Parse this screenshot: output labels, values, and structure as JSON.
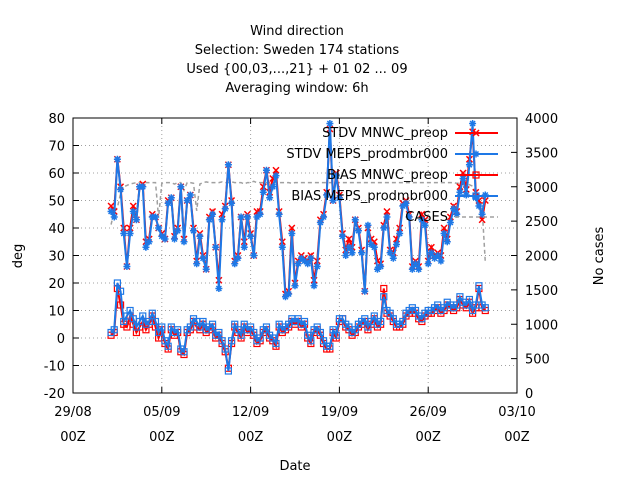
{
  "chart_data": {
    "type": "line",
    "title_lines": [
      "Wind direction",
      "Selection: Sweden    174 stations",
      "Used {00,03,...,21} + 01 02 ... 09",
      "Averaging window:  6h"
    ],
    "xlabel": "Date",
    "ylabel": "deg",
    "y2label": "No cases",
    "ylim": [
      -20,
      80
    ],
    "y2lim": [
      0,
      4000
    ],
    "xlim": [
      "2011-08-29T00",
      "2011-10-03T00"
    ],
    "yticks": [
      "-20",
      "-10",
      "0",
      "10",
      "20",
      "30",
      "40",
      "50",
      "60",
      "70",
      "80"
    ],
    "y2ticks": [
      "0",
      "500",
      "1000",
      "1500",
      "2000",
      "2500",
      "3000",
      "3500",
      "4000"
    ],
    "xticks": [
      {
        "date": "29/08",
        "time": "00Z"
      },
      {
        "date": "05/09",
        "time": "00Z"
      },
      {
        "date": "12/09",
        "time": "00Z"
      },
      {
        "date": "19/09",
        "time": "00Z"
      },
      {
        "date": "26/09",
        "time": "00Z"
      },
      {
        "date": "03/10",
        "time": "00Z"
      }
    ],
    "grid": true,
    "legend_position": "top-right",
    "x_day_range": [
      0,
      35
    ],
    "time_days": [
      3.0,
      3.25,
      3.5,
      3.75,
      4.0,
      4.25,
      4.5,
      4.75,
      5.0,
      5.25,
      5.5,
      5.75,
      6.0,
      6.25,
      6.5,
      6.75,
      7.0,
      7.25,
      7.5,
      7.75,
      8.0,
      8.25,
      8.5,
      8.75,
      9.0,
      9.25,
      9.5,
      9.75,
      10.0,
      10.25,
      10.5,
      10.75,
      11.0,
      11.25,
      11.5,
      11.75,
      12.0,
      12.25,
      12.5,
      12.75,
      13.0,
      13.25,
      13.5,
      13.75,
      14.0,
      14.25,
      14.5,
      14.75,
      15.0,
      15.25,
      15.5,
      15.75,
      16.0,
      16.25,
      16.5,
      16.75,
      17.0,
      17.25,
      17.5,
      17.75,
      18.0,
      18.25,
      18.5,
      18.75,
      19.0,
      19.25,
      19.5,
      19.75,
      20.0,
      20.25,
      20.5,
      20.75,
      21.0,
      21.25,
      21.5,
      21.75,
      22.0,
      22.25,
      22.5,
      22.75,
      23.0,
      23.25,
      23.5,
      23.75,
      24.0,
      24.25,
      24.5,
      24.75,
      25.0,
      25.25,
      25.5,
      25.75,
      26.0,
      26.25,
      26.5,
      26.75,
      27.0,
      27.25,
      27.5,
      27.75,
      28.0,
      28.25,
      28.5,
      28.75,
      29.0,
      29.25,
      29.5,
      29.75,
      30.0,
      30.25,
      30.5,
      30.75,
      31.0,
      31.25,
      31.5,
      31.75,
      32.0,
      32.25,
      32.5,
      32.75,
      33.0
    ],
    "series": [
      {
        "name": "STDV MNWC_preop",
        "color": "#ff0000",
        "marker": "x",
        "axis": "y",
        "values": [
          48,
          46,
          65,
          55,
          40,
          26,
          40,
          48,
          43,
          55,
          56,
          35,
          36,
          45,
          44,
          40,
          38,
          36,
          50,
          51,
          37,
          40,
          55,
          36,
          50,
          52,
          40,
          28,
          38,
          30,
          25,
          44,
          46,
          33,
          21,
          45,
          48,
          63,
          50,
          28,
          30,
          44,
          35,
          45,
          38,
          30,
          46,
          46,
          55,
          61,
          53,
          58,
          61,
          46,
          35,
          16,
          17,
          40,
          20,
          28,
          30,
          29,
          28,
          30,
          21,
          28,
          43,
          45,
          53,
          76,
          50,
          60,
          52,
          38,
          32,
          36,
          33,
          43,
          40,
          32,
          17,
          40,
          36,
          35,
          28,
          27,
          41,
          46,
          32,
          31,
          36,
          40,
          49,
          50,
          45,
          26,
          28,
          26,
          45,
          43,
          28,
          33,
          30,
          31,
          30,
          40,
          36,
          44,
          48,
          46,
          55,
          60,
          54,
          65,
          75,
          53,
          50,
          43,
          50
        ]
      },
      {
        "name": "STDV MEPS_prodmbr000",
        "color": "#1e78e6",
        "marker": "*",
        "axis": "y",
        "values": [
          46,
          44,
          65,
          54,
          38,
          26,
          38,
          46,
          43,
          55,
          55,
          33,
          35,
          44,
          44,
          40,
          37,
          36,
          49,
          51,
          36,
          39,
          55,
          35,
          50,
          52,
          39,
          27,
          37,
          29,
          25,
          43,
          45,
          33,
          18,
          43,
          47,
          63,
          49,
          27,
          29,
          44,
          33,
          44,
          37,
          30,
          44,
          45,
          53,
          61,
          51,
          55,
          59,
          45,
          33,
          15,
          16,
          38,
          19,
          27,
          29,
          28,
          27,
          29,
          19,
          26,
          42,
          44,
          52,
          78,
          50,
          59,
          51,
          37,
          30,
          33,
          31,
          43,
          39,
          31,
          17,
          41,
          34,
          33,
          25,
          26,
          40,
          44,
          31,
          29,
          34,
          38,
          48,
          49,
          44,
          25,
          27,
          25,
          43,
          41,
          27,
          31,
          29,
          30,
          28,
          38,
          35,
          42,
          47,
          45,
          53,
          58,
          52,
          63,
          78,
          51,
          48,
          45,
          52
        ]
      },
      {
        "name": "BIAS MNWC_preop",
        "color": "#ff0000",
        "marker": "square",
        "axis": "y",
        "values": [
          1,
          2,
          18,
          12,
          5,
          4,
          8,
          5,
          2,
          4,
          6,
          3,
          5,
          8,
          4,
          0,
          3,
          -2,
          -4,
          3,
          1,
          2,
          -5,
          -6,
          2,
          3,
          6,
          4,
          3,
          5,
          2,
          3,
          4,
          0,
          1,
          -2,
          -5,
          -11,
          -2,
          4,
          2,
          0,
          4,
          2,
          3,
          1,
          -2,
          -1,
          2,
          3,
          0,
          -1,
          -3,
          4,
          2,
          3,
          4,
          6,
          5,
          6,
          4,
          5,
          0,
          -2,
          2,
          3,
          1,
          -2,
          -4,
          -4,
          2,
          0,
          6,
          7,
          4,
          3,
          1,
          2,
          4,
          5,
          6,
          3,
          5,
          7,
          4,
          5,
          18,
          9,
          8,
          6,
          4,
          4,
          5,
          8,
          9,
          10,
          9,
          7,
          6,
          8,
          9,
          9,
          10,
          11,
          9,
          10,
          12,
          11,
          10,
          11,
          14,
          12,
          11,
          13,
          9,
          11,
          18,
          11,
          10
        ]
      },
      {
        "name": "BIAS MEPS_prodmbr000",
        "color": "#1e78e6",
        "marker": "square",
        "axis": "y",
        "values": [
          2,
          3,
          20,
          17,
          6,
          8,
          10,
          7,
          4,
          6,
          8,
          5,
          6,
          9,
          6,
          2,
          4,
          -1,
          -3,
          4,
          2,
          3,
          -4,
          -5,
          3,
          4,
          7,
          6,
          4,
          6,
          3,
          4,
          5,
          1,
          2,
          -1,
          -4,
          -12,
          -1,
          5,
          3,
          1,
          5,
          3,
          4,
          2,
          -1,
          0,
          3,
          4,
          1,
          0,
          -2,
          5,
          3,
          4,
          5,
          7,
          6,
          7,
          5,
          6,
          1,
          -1,
          3,
          4,
          2,
          -1,
          -3,
          -3,
          3,
          1,
          7,
          7,
          5,
          4,
          2,
          3,
          5,
          6,
          7,
          4,
          6,
          8,
          5,
          6,
          15,
          10,
          9,
          7,
          5,
          5,
          6,
          9,
          10,
          11,
          10,
          8,
          7,
          9,
          10,
          10,
          11,
          12,
          10,
          11,
          13,
          12,
          11,
          12,
          15,
          13,
          12,
          14,
          10,
          12,
          19,
          12,
          11
        ]
      },
      {
        "name": "CASES",
        "color": "#a0a0a0",
        "style": "dashed",
        "axis": "y2",
        "values": [
          2450,
          2650,
          2700,
          2900,
          3000,
          3020,
          3040,
          3050,
          3060,
          3060,
          3060,
          3060,
          3060,
          3060,
          3060,
          2550,
          3050,
          3060,
          3060,
          3060,
          3040,
          3060,
          3060,
          2950,
          3060,
          3060,
          3050,
          2650,
          3040,
          3060,
          3070,
          3060,
          3060,
          3060,
          3060,
          3070,
          3060,
          3060,
          3070,
          3060,
          3060,
          3060,
          3040,
          3060,
          3060,
          3080,
          3060,
          3060,
          3060,
          3060,
          3060,
          3060,
          3060,
          3060,
          3060,
          3060,
          3060,
          3050,
          3060,
          3060,
          3060,
          3060,
          3060,
          3060,
          3060,
          3060,
          3060,
          3060,
          3060,
          3060,
          3060,
          3060,
          3060,
          3060,
          3060,
          3060,
          3060,
          3060,
          3060,
          3060,
          3060,
          3060,
          3060,
          3060,
          3060,
          3060,
          3060,
          3060,
          3060,
          3060,
          3060,
          3060,
          3060,
          3060,
          3060,
          3060,
          3060,
          3060,
          3060,
          3060,
          3060,
          3060,
          3060,
          3060,
          3060,
          3060,
          3060,
          3060,
          3060,
          3050,
          3050,
          3040,
          3040,
          3030,
          3010,
          2900,
          2800,
          2700,
          1900
        ]
      }
    ]
  }
}
